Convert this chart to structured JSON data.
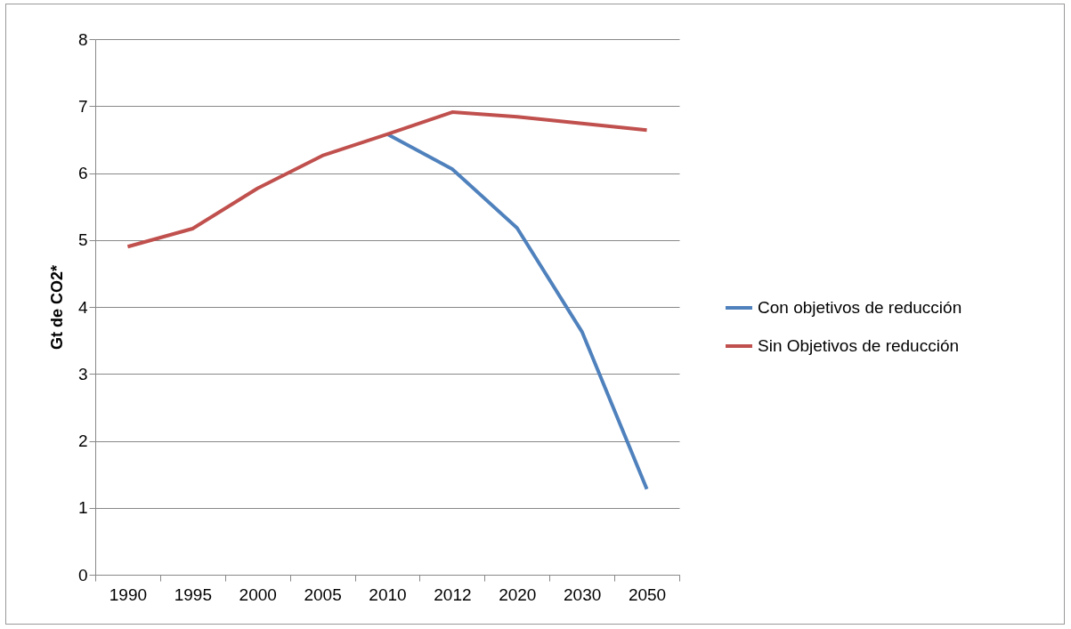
{
  "chart_data": {
    "type": "line",
    "ylabel": "Gt de CO2*",
    "categories": [
      "1990",
      "1995",
      "2000",
      "2005",
      "2010",
      "2012",
      "2020",
      "2030",
      "2050"
    ],
    "series": [
      {
        "name": "Con objetivos de reducción",
        "color": "#4f81bd",
        "values": [
          null,
          null,
          null,
          null,
          6.58,
          6.06,
          5.18,
          3.63,
          1.28
        ]
      },
      {
        "name": "Sin Objetivos de reducción",
        "color": "#c0504d",
        "values": [
          4.9,
          5.17,
          5.77,
          6.26,
          6.58,
          6.91,
          6.84,
          6.74,
          6.64
        ]
      }
    ],
    "ylim": [
      0,
      8
    ],
    "yticks": [
      0,
      1,
      2,
      3,
      4,
      5,
      6,
      7,
      8
    ],
    "grid": "y",
    "legend": "right",
    "marker": "none",
    "line_style": "solid"
  }
}
